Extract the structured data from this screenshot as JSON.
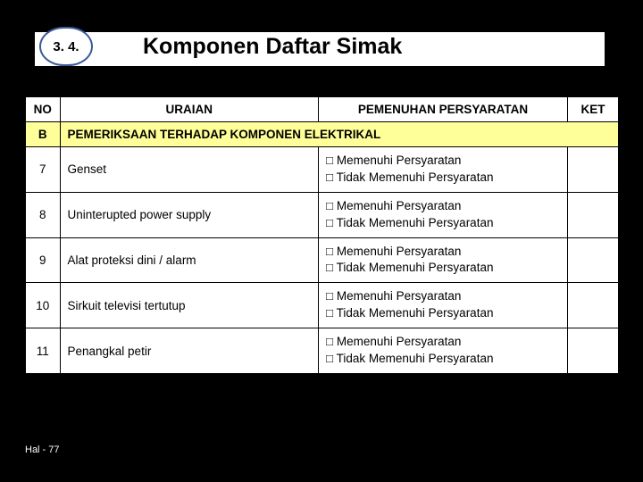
{
  "badge_number": "3. 4.",
  "title": "Komponen Daftar Simak",
  "columns": {
    "no": "NO",
    "uraian": "URAIAN",
    "pemenuhan": "PEMENUHAN PERSYARATAN",
    "ket": "KET"
  },
  "section": {
    "label": "B",
    "text": "PEMERIKSAAN TERHADAP KOMPONEN ELEKTRIKAL"
  },
  "option_yes": "□ Memenuhi Persyaratan",
  "option_no": "□ Tidak Memenuhi Persyaratan",
  "rows": [
    {
      "no": "7",
      "uraian": "Genset"
    },
    {
      "no": "8",
      "uraian": "Uninterupted power supply"
    },
    {
      "no": "9",
      "uraian": "Alat proteksi dini / alarm"
    },
    {
      "no": "10",
      "uraian": "Sirkuit televisi tertutup"
    },
    {
      "no": "11",
      "uraian": "Penangkal petir"
    }
  ],
  "footer": "Hal - 77",
  "colors": {
    "page_bg": "#000000",
    "table_bg": "#ffffff",
    "section_bg": "#ffff99",
    "badge_border": "#3b5998",
    "border": "#000000"
  }
}
